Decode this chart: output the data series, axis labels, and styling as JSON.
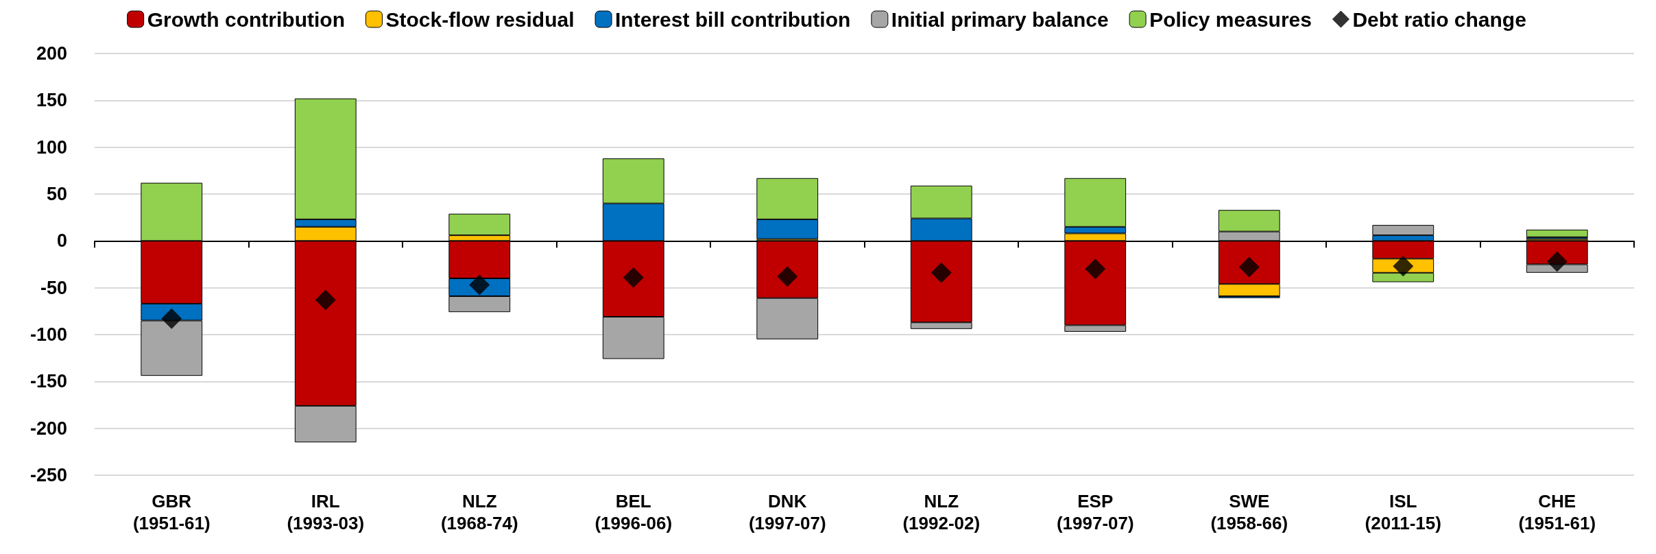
{
  "chart_data": {
    "type": "bar",
    "stacked": true,
    "categories": [
      "GBR\n(1951-61)",
      "IRL\n(1993-03)",
      "NLZ\n(1968-74)",
      "BEL\n(1996-06)",
      "DNK\n(1997-07)",
      "NLZ\n(1992-02)",
      "ESP\n(1997-07)",
      "SWE\n(1958-66)",
      "ISL\n(2011-15)",
      "CHE\n(1951-61)"
    ],
    "series": [
      {
        "name": "Growth contribution",
        "color": "#c00000",
        "values": [
          -67,
          -176,
          -40,
          -81,
          -61,
          -87,
          -90,
          -46,
          -19,
          -25
        ]
      },
      {
        "name": "Stock-flow residual",
        "color": "#ffc000",
        "values": [
          null,
          15,
          6,
          null,
          2,
          null,
          8,
          -13,
          -15,
          2
        ]
      },
      {
        "name": "Interest bill contribution",
        "color": "#0070c0",
        "values": [
          -18,
          8,
          -19,
          40,
          21,
          24,
          7,
          -2,
          6,
          2
        ]
      },
      {
        "name": "Initial primary balance",
        "color": "#a6a6a6",
        "values": [
          -59,
          -39,
          -17,
          -45,
          -44,
          -7,
          -7,
          10,
          11,
          -9
        ]
      },
      {
        "name": "Policy measures",
        "color": "#92d050",
        "values": [
          62,
          129,
          23,
          48,
          44,
          35,
          52,
          23,
          -10,
          8
        ]
      },
      {
        "name": "Debt ratio change",
        "type": "scatter",
        "marker": "diamond",
        "color": "#000000",
        "values": [
          -83,
          -63,
          -47,
          -39,
          -38,
          -34,
          -30,
          -28,
          -27,
          -22
        ]
      }
    ],
    "ylim": [
      -250,
      200
    ],
    "yticks": [
      -250,
      -200,
      -150,
      -100,
      -50,
      0,
      50,
      100,
      150,
      200
    ],
    "grid": "y",
    "legend": "top"
  }
}
